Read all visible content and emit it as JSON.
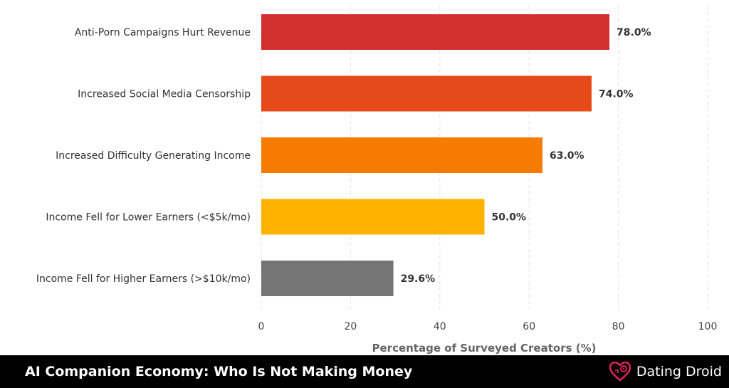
{
  "chart_data": {
    "type": "bar",
    "orientation": "horizontal",
    "categories": [
      "Anti-Porn Campaigns Hurt Revenue",
      "Increased Social Media Censorship",
      "Increased Difficulty Generating Income",
      "Income Fell for Lower Earners (<$5k/mo)",
      "Income Fell for Higher Earners (>$10k/mo)"
    ],
    "values": [
      78.0,
      74.0,
      63.0,
      50.0,
      29.6
    ],
    "value_labels": [
      "78.0%",
      "74.0%",
      "63.0%",
      "50.0%",
      "29.6%"
    ],
    "colors": [
      "#d32f2f",
      "#e64a19",
      "#f57c00",
      "#ffb300",
      "#757575"
    ],
    "xlabel": "Percentage of Surveyed Creators (%)",
    "xlim": [
      0,
      100
    ],
    "xticks": [
      0,
      20,
      40,
      60,
      80,
      100
    ],
    "grid": "vertical dashed"
  },
  "footer": {
    "title": "AI Companion Economy: Who Is Not Making Money",
    "brand": "Dating Droid",
    "brand_icon": "heart-gear-icon",
    "brand_color": "#e0245e"
  }
}
